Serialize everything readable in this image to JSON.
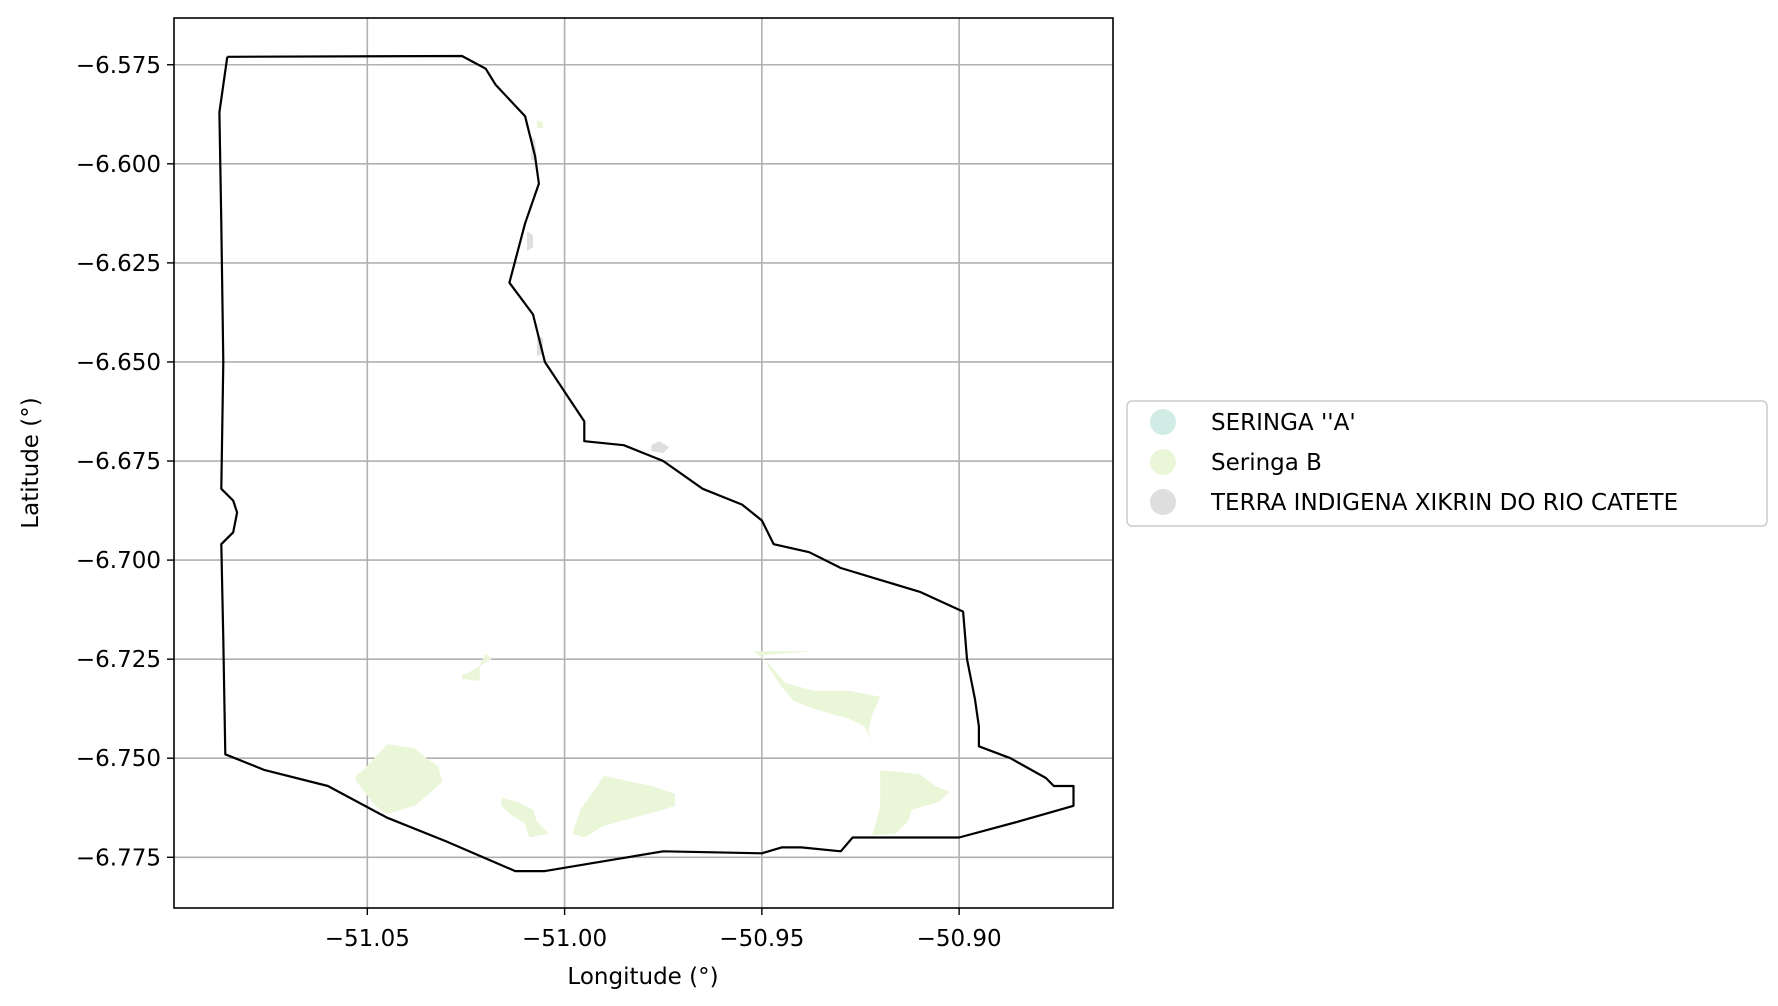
{
  "chart_data": {
    "type": "map",
    "xlabel": "Longitude (°)",
    "ylabel": "Latitude (°)",
    "xlim": [
      -51.099,
      -50.861
    ],
    "ylim": [
      -6.7878,
      -6.5632
    ],
    "xticks": [
      -51.05,
      -51.0,
      -50.95,
      -50.9
    ],
    "yticks": [
      -6.575,
      -6.6,
      -6.625,
      -6.65,
      -6.675,
      -6.7,
      -6.725,
      -6.75,
      -6.775
    ],
    "xtick_labels": [
      "−51.05",
      "−51.00",
      "−50.95",
      "−50.90"
    ],
    "ytick_labels": [
      "−6.575",
      "−6.600",
      "−6.625",
      "−6.650",
      "−6.675",
      "−6.700",
      "−6.725",
      "−6.750",
      "−6.775"
    ],
    "grid": true,
    "legend_position": "right, outside plot",
    "legend": [
      {
        "label": "SERINGA ''A'",
        "color": "#d0ece4"
      },
      {
        "label": "Seringa B",
        "color": "#eaf6d8"
      },
      {
        "label": "TERRA INDIGENA XIKRIN DO RIO CATETE",
        "color": "#dedede"
      }
    ],
    "boundary": {
      "color": "#000000",
      "coords": [
        [
          -51.0855,
          -6.573
        ],
        [
          -51.026,
          -6.5728
        ],
        [
          -51.02,
          -6.576
        ],
        [
          -51.0175,
          -6.58
        ],
        [
          -51.01,
          -6.588
        ],
        [
          -51.0075,
          -6.598
        ],
        [
          -51.0065,
          -6.605
        ],
        [
          -51.01,
          -6.615
        ],
        [
          -51.014,
          -6.63
        ],
        [
          -51.008,
          -6.638
        ],
        [
          -51.005,
          -6.65
        ],
        [
          -50.999,
          -6.659
        ],
        [
          -50.995,
          -6.665
        ],
        [
          -50.995,
          -6.67
        ],
        [
          -50.985,
          -6.671
        ],
        [
          -50.975,
          -6.675
        ],
        [
          -50.965,
          -6.682
        ],
        [
          -50.955,
          -6.686
        ],
        [
          -50.95,
          -6.69
        ],
        [
          -50.947,
          -6.696
        ],
        [
          -50.938,
          -6.698
        ],
        [
          -50.93,
          -6.702
        ],
        [
          -50.92,
          -6.705
        ],
        [
          -50.91,
          -6.708
        ],
        [
          -50.899,
          -6.713
        ],
        [
          -50.898,
          -6.725
        ],
        [
          -50.896,
          -6.735
        ],
        [
          -50.895,
          -6.742
        ],
        [
          -50.895,
          -6.747
        ],
        [
          -50.887,
          -6.75
        ],
        [
          -50.878,
          -6.755
        ],
        [
          -50.876,
          -6.757
        ],
        [
          -50.871,
          -6.757
        ],
        [
          -50.871,
          -6.762
        ],
        [
          -50.885,
          -6.766
        ],
        [
          -50.9,
          -6.77
        ],
        [
          -50.905,
          -6.77
        ],
        [
          -50.92,
          -6.77
        ],
        [
          -50.927,
          -6.77
        ],
        [
          -50.93,
          -6.7735
        ],
        [
          -50.94,
          -6.7725
        ],
        [
          -50.945,
          -6.7725
        ],
        [
          -50.95,
          -6.774
        ],
        [
          -50.975,
          -6.7735
        ],
        [
          -50.99,
          -6.776
        ],
        [
          -51.005,
          -6.7785
        ],
        [
          -51.0125,
          -6.7785
        ],
        [
          -51.03,
          -6.771
        ],
        [
          -51.045,
          -6.765
        ],
        [
          -51.06,
          -6.757
        ],
        [
          -51.076,
          -6.753
        ],
        [
          -51.086,
          -6.749
        ],
        [
          -51.0865,
          -6.72
        ],
        [
          -51.087,
          -6.696
        ],
        [
          -51.084,
          -6.693
        ],
        [
          -51.083,
          -6.688
        ],
        [
          -51.084,
          -6.685
        ],
        [
          -51.087,
          -6.682
        ],
        [
          -51.0865,
          -6.65
        ],
        [
          -51.087,
          -6.615
        ],
        [
          -51.0875,
          -6.587
        ],
        [
          -51.0855,
          -6.573
        ]
      ]
    },
    "series": [
      {
        "name": "Seringa B",
        "color": "#eaf6d8",
        "polygons": [
          [
            [
              -51.007,
              -6.589
            ],
            [
              -51.0055,
              -6.5895
            ],
            [
              -51.0055,
              -6.591
            ],
            [
              -51.007,
              -6.591
            ]
          ],
          [
            [
              -51.026,
              -6.73
            ],
            [
              -51.0215,
              -6.7305
            ],
            [
              -51.0215,
              -6.7265
            ],
            [
              -51.02,
              -6.7235
            ],
            [
              -51.0185,
              -6.725
            ],
            [
              -51.0245,
              -6.7285
            ],
            [
              -51.026,
              -6.729
            ]
          ],
          [
            [
              -51.045,
              -6.7465
            ],
            [
              -51.038,
              -6.7475
            ],
            [
              -51.035,
              -6.75
            ],
            [
              -51.032,
              -6.752
            ],
            [
              -51.031,
              -6.756
            ],
            [
              -51.035,
              -6.7595
            ],
            [
              -51.038,
              -6.762
            ],
            [
              -51.045,
              -6.764
            ],
            [
              -51.046,
              -6.7635
            ],
            [
              -51.048,
              -6.762
            ],
            [
              -51.053,
              -6.7555
            ],
            [
              -51.053,
              -6.7545
            ],
            [
              -51.051,
              -6.753
            ]
          ],
          [
            [
              -51.016,
              -6.76
            ],
            [
              -51.012,
              -6.761
            ],
            [
              -51.008,
              -6.763
            ],
            [
              -51.007,
              -6.766
            ],
            [
              -51.004,
              -6.769
            ],
            [
              -51.009,
              -6.77
            ],
            [
              -51.01,
              -6.7665
            ],
            [
              -51.014,
              -6.764
            ],
            [
              -51.016,
              -6.762
            ]
          ],
          [
            [
              -50.99,
              -6.7545
            ],
            [
              -50.978,
              -6.757
            ],
            [
              -50.972,
              -6.759
            ],
            [
              -50.972,
              -6.762
            ],
            [
              -50.975,
              -6.763
            ],
            [
              -50.99,
              -6.767
            ],
            [
              -50.995,
              -6.77
            ],
            [
              -50.998,
              -6.769
            ],
            [
              -50.996,
              -6.763
            ]
          ],
          [
            [
              -50.937,
              -6.723
            ],
            [
              -50.947,
              -6.723
            ],
            [
              -50.952,
              -6.723
            ],
            [
              -50.948,
              -6.7265
            ],
            [
              -50.944,
              -6.731
            ],
            [
              -50.937,
              -6.733
            ],
            [
              -50.928,
              -6.733
            ],
            [
              -50.92,
              -6.7345
            ],
            [
              -50.922,
              -6.739
            ],
            [
              -50.923,
              -6.743
            ],
            [
              -50.9215,
              -6.748
            ],
            [
              -50.9225,
              -6.745
            ],
            [
              -50.924,
              -6.742
            ],
            [
              -50.928,
              -6.74
            ],
            [
              -50.937,
              -6.7375
            ],
            [
              -50.942,
              -6.7355
            ],
            [
              -50.945,
              -6.732
            ],
            [
              -50.948,
              -6.7275
            ],
            [
              -50.95,
              -6.724
            ]
          ],
          [
            [
              -50.92,
              -6.753
            ],
            [
              -50.91,
              -6.754
            ],
            [
              -50.906,
              -6.757
            ],
            [
              -50.9025,
              -6.7585
            ],
            [
              -50.905,
              -6.761
            ],
            [
              -50.912,
              -6.763
            ],
            [
              -50.913,
              -6.766
            ],
            [
              -50.916,
              -6.769
            ],
            [
              -50.922,
              -6.7695
            ],
            [
              -50.921,
              -6.766
            ],
            [
              -50.92,
              -6.762
            ]
          ]
        ]
      },
      {
        "name": "TERRA INDIGENA XIKRIN DO RIO CATETE",
        "color": "#dedede",
        "polygons": [
          [
            [
              -51.0085,
              -6.593
            ],
            [
              -51.0075,
              -6.594
            ],
            [
              -51.007,
              -6.599
            ],
            [
              -51.0085,
              -6.599
            ]
          ],
          [
            [
              -51.0095,
              -6.617
            ],
            [
              -51.008,
              -6.618
            ],
            [
              -51.008,
              -6.621
            ],
            [
              -51.0095,
              -6.622
            ]
          ],
          [
            [
              -51.007,
              -6.643
            ],
            [
              -51.0055,
              -6.644
            ],
            [
              -51.0055,
              -6.648
            ],
            [
              -51.007,
              -6.6485
            ]
          ],
          [
            [
              -50.978,
              -6.671
            ],
            [
              -50.976,
              -6.67
            ],
            [
              -50.9735,
              -6.6715
            ],
            [
              -50.975,
              -6.673
            ],
            [
              -50.978,
              -6.6725
            ]
          ]
        ]
      }
    ]
  }
}
